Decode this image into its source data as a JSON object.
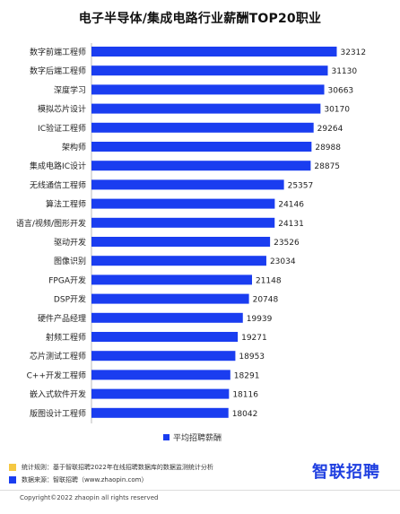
{
  "page": {
    "legend_label": "平均招聘薪酬",
    "notes": [
      {
        "text": "统计规则：基于智联招聘2022年在线招聘数据库的数据监测统计分析",
        "color": "#f5c842"
      },
      {
        "text": "数据来源：智联招聘（www.zhaopin.com）",
        "color": "#1a3df0"
      }
    ],
    "brand": "智联招聘",
    "copyright": "Copyright©2022 zhaopin all rights reserved"
  },
  "chart_data": {
    "type": "bar",
    "orientation": "horizontal",
    "title": "电子半导体/集成电路行业薪酬TOP20职业",
    "categories": [
      "数字前端工程师",
      "数字后端工程师",
      "深度学习",
      "模拟芯片设计",
      "IC验证工程师",
      "架构师",
      "集成电路IC设计",
      "无线通信工程师",
      "算法工程师",
      "语言/视频/图形开发",
      "驱动开发",
      "图像识别",
      "FPGA开发",
      "DSP开发",
      "硬件产品经理",
      "射频工程师",
      "芯片测试工程师",
      "C++开发工程师",
      "嵌入式软件开发",
      "版图设计工程师"
    ],
    "series": [
      {
        "name": "平均招聘薪酬",
        "values": [
          32312,
          31130,
          30663,
          30170,
          29264,
          28988,
          28875,
          25357,
          24146,
          24131,
          23526,
          23034,
          21148,
          20748,
          19939,
          19271,
          18953,
          18291,
          18116,
          18042
        ]
      }
    ],
    "bar_color": "#1a3df0",
    "xlim": [
      0,
      33200
    ],
    "legend_position": "bottom",
    "grid": false
  }
}
